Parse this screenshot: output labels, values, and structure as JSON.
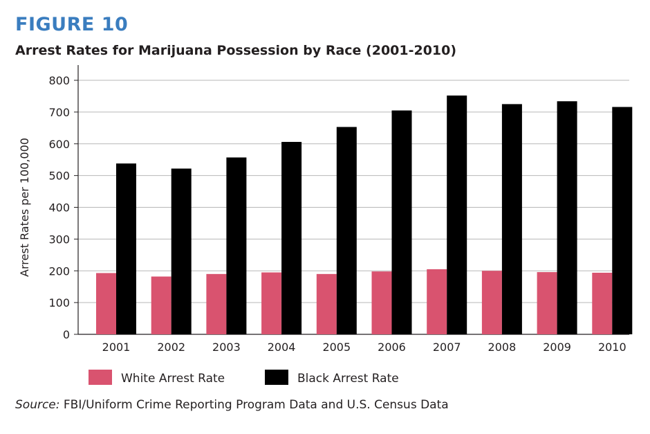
{
  "figure_label": "FIGURE 10",
  "source": {
    "lead": "Source:",
    "text": "FBI/Uniform Crime Reporting Program Data and U.S. Census Data"
  },
  "colors": {
    "white_series": "#d9536f",
    "black_series": "#000000",
    "grid": "#b7b7b7",
    "figure_label": "#3a7dbf"
  },
  "chart_data": {
    "type": "bar",
    "title": "Arrest Rates for Marijuana Possession by Race (2001-2010)",
    "xlabel": "",
    "ylabel": "Arrest Rates per 100,000",
    "categories": [
      "2001",
      "2002",
      "2003",
      "2004",
      "2005",
      "2006",
      "2007",
      "2008",
      "2009",
      "2010"
    ],
    "series": [
      {
        "name": "White Arrest Rate",
        "color": "#d9536f",
        "values": [
          193,
          182,
          190,
          195,
          190,
          198,
          205,
          200,
          196,
          194
        ]
      },
      {
        "name": "Black Arrest Rate",
        "color": "#000000",
        "values": [
          538,
          522,
          557,
          606,
          653,
          705,
          752,
          725,
          734,
          716
        ]
      }
    ],
    "ylim": [
      0,
      800
    ],
    "yticks": [
      0,
      100,
      200,
      300,
      400,
      500,
      600,
      700,
      800
    ],
    "grid": true,
    "legend_position": "bottom-left"
  }
}
